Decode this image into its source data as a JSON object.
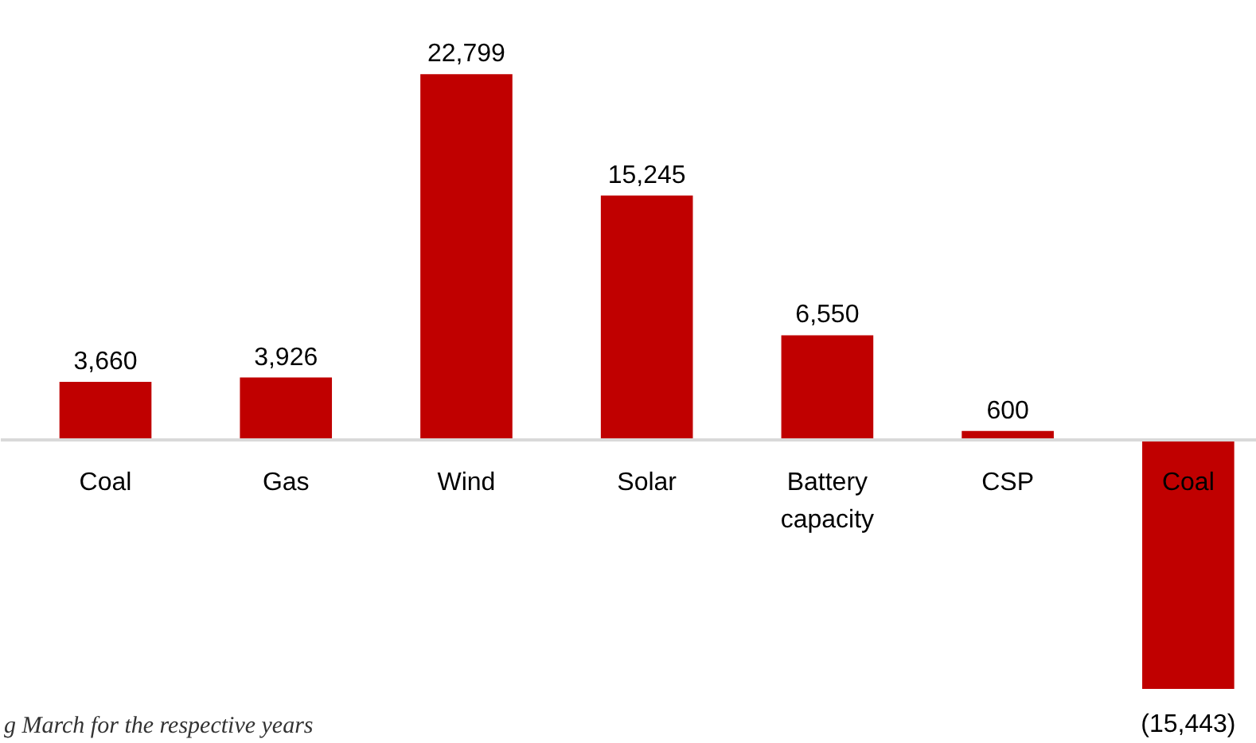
{
  "chart_data": {
    "type": "bar",
    "categories": [
      "Coal",
      "Gas",
      "Wind",
      "Solar",
      "Battery capacity",
      "CSP",
      "Coal"
    ],
    "values": [
      3660,
      3926,
      22799,
      15245,
      6550,
      600,
      -15443
    ],
    "value_labels": [
      "3,660",
      "3,926",
      "22,799",
      "15,245",
      "6,550",
      "600",
      "(15,443)"
    ],
    "color": "#c00000",
    "grid": false,
    "annotations": [
      "g March for the respective years"
    ]
  }
}
